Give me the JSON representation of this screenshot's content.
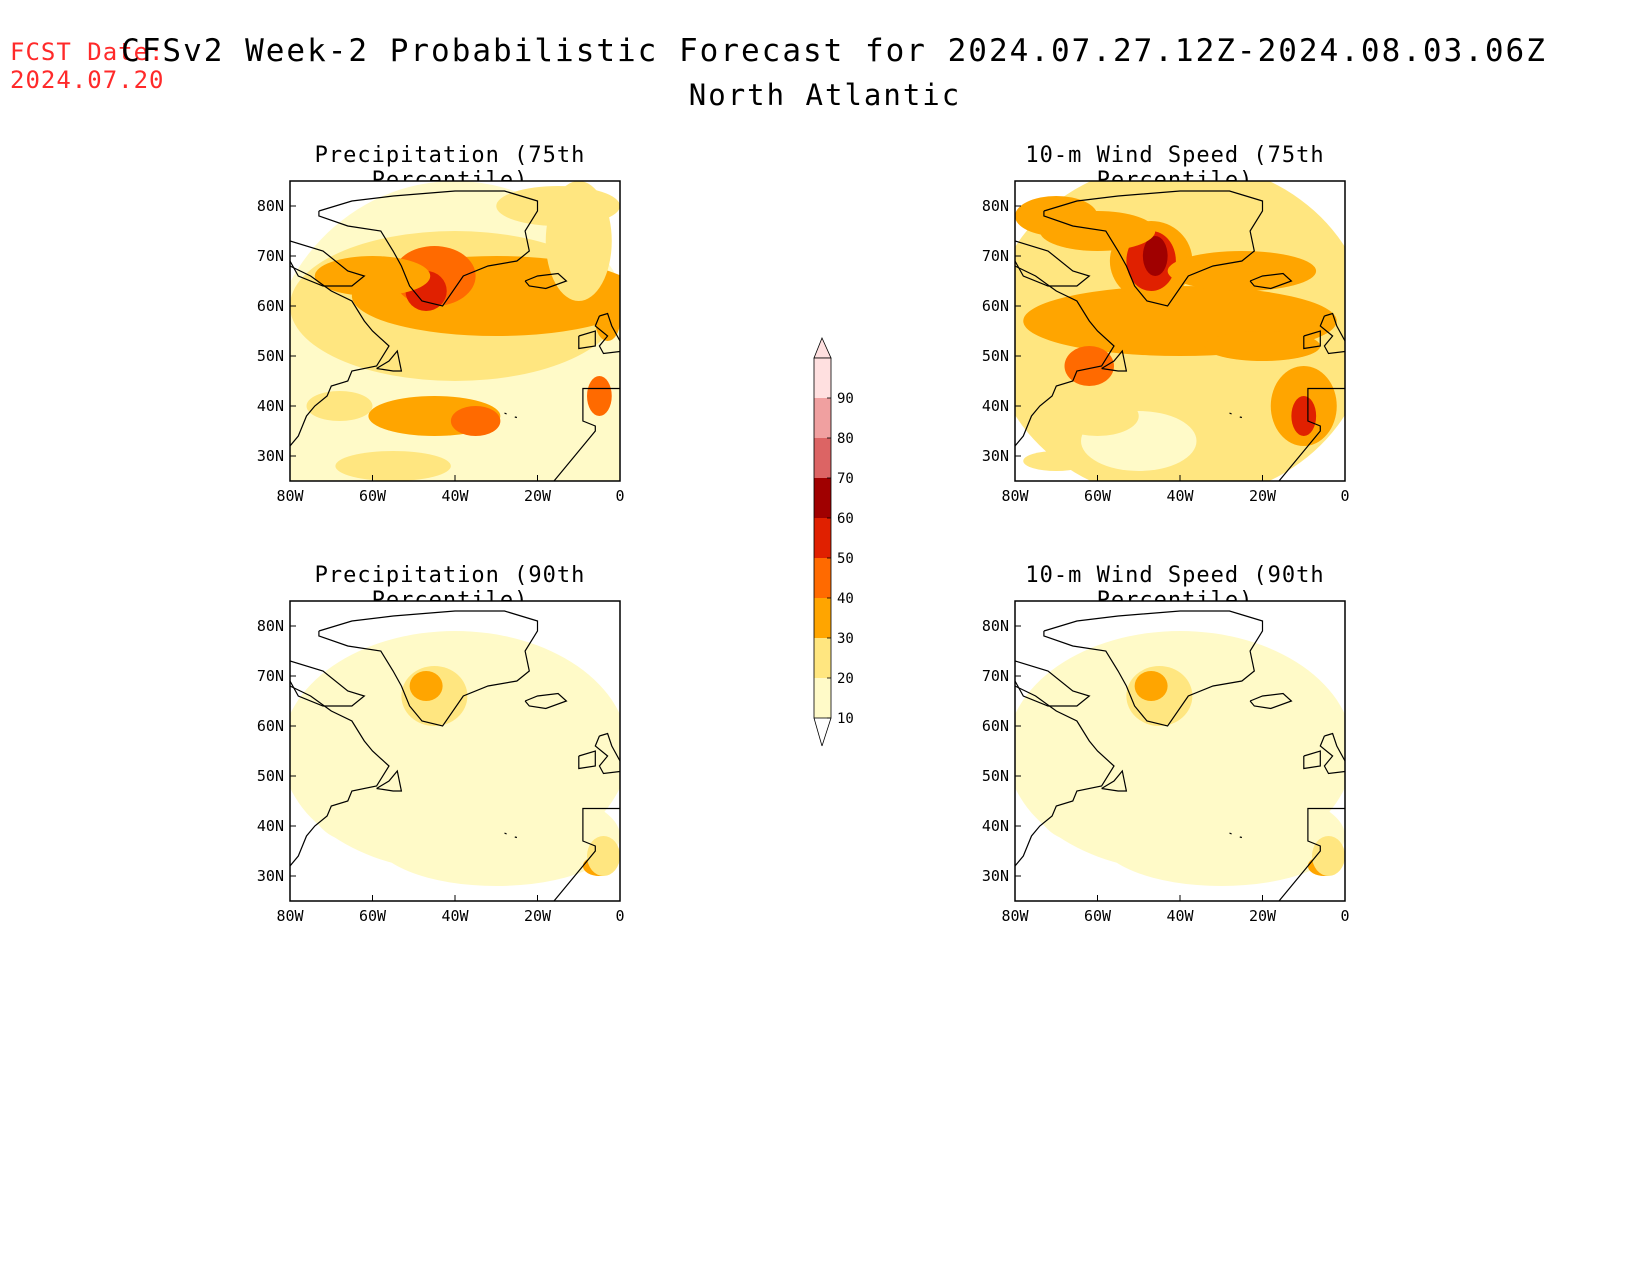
{
  "forecast_date": {
    "label": "FCST Date:",
    "value": "2024.07.20"
  },
  "title": "CFSv2 Week-2 Probabilistic Forecast for 2024.07.27.12Z-2024.08.03.06Z",
  "subtitle": "North Atlantic",
  "axes": {
    "lat_ticks": [
      "80N",
      "70N",
      "60N",
      "50N",
      "40N",
      "30N"
    ],
    "lon_ticks": [
      "80W",
      "60W",
      "40W",
      "20W",
      "0"
    ]
  },
  "panels": [
    {
      "id": "precip75",
      "title": "Precipitation (75th Percentile)",
      "level": "high"
    },
    {
      "id": "wind75",
      "title": "10-m Wind Speed (75th Percentile)",
      "level": "veryhigh"
    },
    {
      "id": "precip90",
      "title": "Precipitation (90th Percentile)",
      "level": "low"
    },
    {
      "id": "wind90",
      "title": "10-m Wind Speed (90th Percentile)",
      "level": "low"
    }
  ],
  "colorbar": {
    "labels": [
      "10",
      "20",
      "30",
      "40",
      "50",
      "60",
      "70",
      "80",
      "90"
    ],
    "colors": [
      "#fffac8",
      "#ffe680",
      "#ffa500",
      "#ff6a00",
      "#e02000",
      "#a00000",
      "#dc6464",
      "#f0a0a0",
      "#ffe0e0"
    ]
  }
}
